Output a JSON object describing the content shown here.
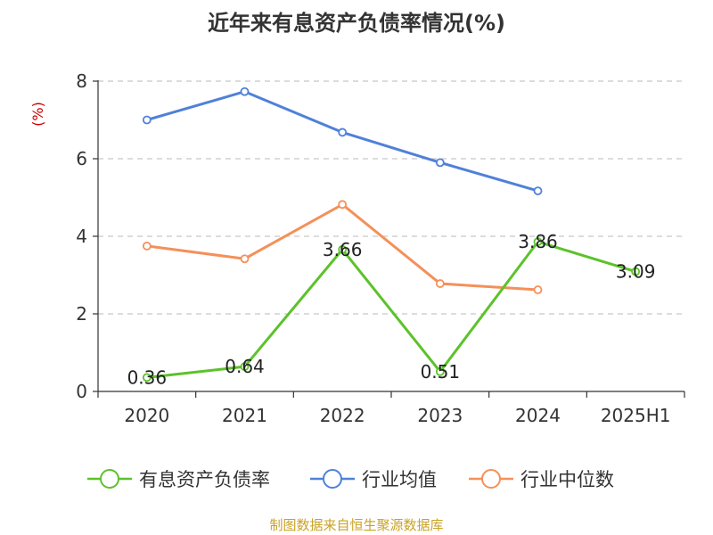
{
  "chart_data": {
    "type": "line",
    "title": "近年来有息资产负债率情况(%)",
    "ylabel": "(%)",
    "ylim": [
      0,
      8
    ],
    "yticks": [
      0,
      2,
      4,
      6,
      8
    ],
    "grid": true,
    "legend_position": "bottom",
    "categories": [
      "2020",
      "2021",
      "2022",
      "2023",
      "2024",
      "2025H1"
    ],
    "series": [
      {
        "name": "有息资产负债率",
        "color": "#5cc22b",
        "values": [
          0.36,
          0.64,
          3.66,
          0.51,
          3.86,
          3.09
        ],
        "labels": [
          "0.36",
          "0.64",
          "3.66",
          "0.51",
          "3.86",
          "3.09"
        ]
      },
      {
        "name": "行业均值",
        "color": "#4f81d9",
        "values": [
          7.0,
          7.73,
          6.68,
          5.9,
          5.17,
          null
        ]
      },
      {
        "name": "行业中位数",
        "color": "#f4905a",
        "values": [
          3.75,
          3.42,
          4.82,
          2.78,
          2.62,
          null
        ]
      }
    ]
  },
  "source": "制图数据来自恒生聚源数据库"
}
